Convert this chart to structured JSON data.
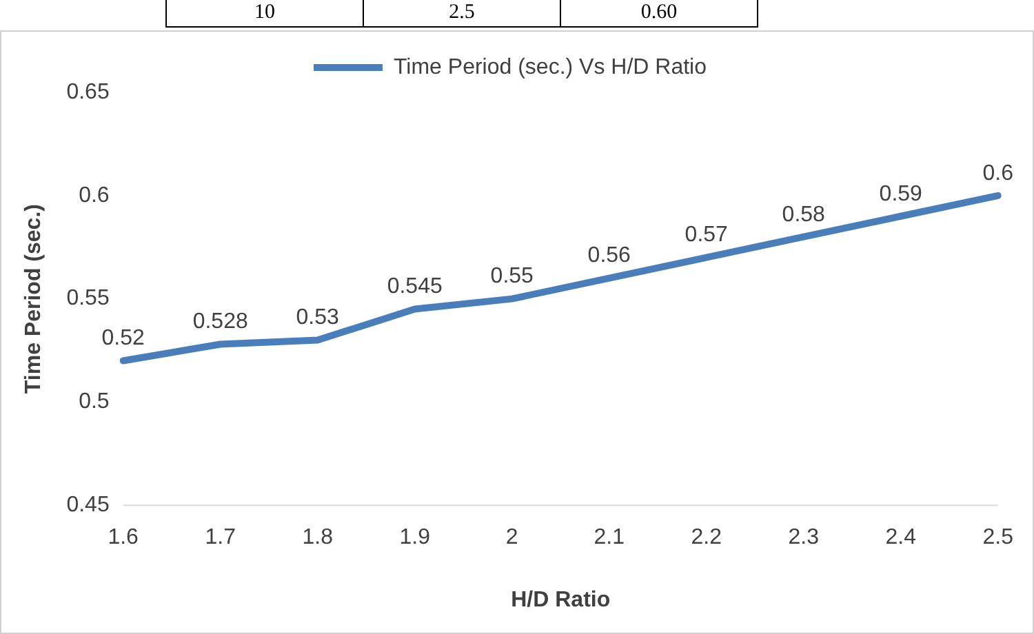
{
  "chart_data": {
    "type": "line",
    "xlabel": "H/D Ratio",
    "ylabel": "Time Period (sec.)",
    "categories": [
      "1.6",
      "1.7",
      "1.8",
      "1.9",
      "2",
      "2.1",
      "2.2",
      "2.3",
      "2.4",
      "2.5"
    ],
    "series": [
      {
        "name": "Time Period (sec.) Vs H/D Ratio",
        "color": "#4a7ebb",
        "values": [
          0.52,
          0.528,
          0.53,
          0.545,
          0.55,
          0.56,
          0.57,
          0.58,
          0.59,
          0.6
        ]
      }
    ],
    "ylim": [
      0.45,
      0.65
    ],
    "yticks": [
      0.45,
      0.5,
      0.55,
      0.6,
      0.65
    ],
    "grid": false,
    "legend": "top",
    "marker": "none",
    "data_labels": true,
    "annotations": [
      "10",
      "2.5",
      "0.60"
    ]
  }
}
